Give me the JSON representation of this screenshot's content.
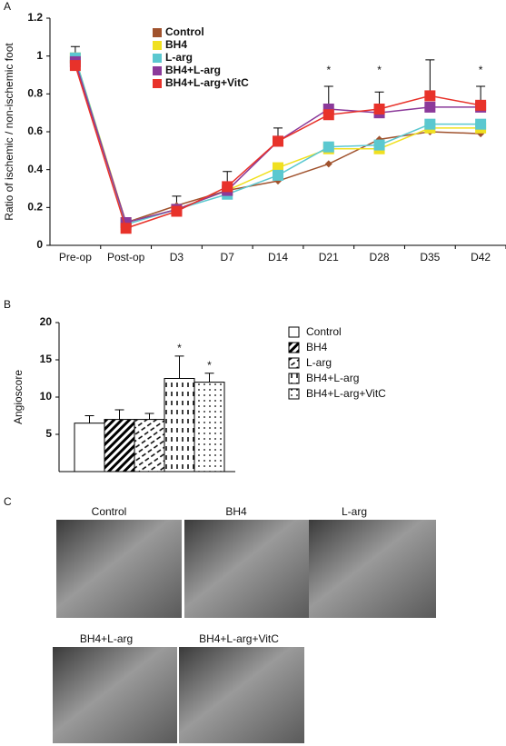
{
  "panel_labels": [
    "A",
    "B",
    "C"
  ],
  "chart_data": [
    {
      "type": "line",
      "ylabel": "Ratio of ischemic / non-ischemic foot",
      "categories": [
        "Pre-op",
        "Post-op",
        "D3",
        "D7",
        "D14",
        "D21",
        "D28",
        "D35",
        "D42"
      ],
      "series": [
        {
          "name": "Control",
          "color": "#a0522d",
          "marker": "diamond",
          "values": [
            0.97,
            0.12,
            0.21,
            0.29,
            0.34,
            0.43,
            0.56,
            0.6,
            0.59
          ]
        },
        {
          "name": "BH4",
          "color": "#f0e020",
          "marker": "square",
          "values": [
            0.99,
            0.12,
            0.19,
            0.29,
            0.41,
            0.51,
            0.51,
            0.62,
            0.62
          ]
        },
        {
          "name": "L-arg",
          "color": "#5bc8d0",
          "marker": "square",
          "values": [
            0.99,
            0.11,
            0.19,
            0.27,
            0.37,
            0.52,
            0.53,
            0.64,
            0.64
          ]
        },
        {
          "name": "BH4+L-arg",
          "color": "#8b3a9a",
          "marker": "square",
          "values": [
            0.97,
            0.12,
            0.19,
            0.29,
            0.55,
            0.72,
            0.7,
            0.73,
            0.73
          ]
        },
        {
          "name": "BH4+L-arg+VitC",
          "color": "#e8322a",
          "marker": "square",
          "values": [
            0.95,
            0.09,
            0.18,
            0.31,
            0.55,
            0.69,
            0.72,
            0.79,
            0.74
          ],
          "errors": [
            0.1,
            0.04,
            0.08,
            0.08,
            0.07,
            0.15,
            0.09,
            0.19,
            0.1
          ]
        }
      ],
      "significance": [
        null,
        null,
        null,
        null,
        null,
        "*",
        "*",
        null,
        "*"
      ],
      "ylim": [
        0,
        1.2
      ],
      "yticks": [
        0,
        0.2,
        0.4,
        0.6,
        0.8,
        1,
        1.2
      ]
    },
    {
      "type": "bar",
      "ylabel": "Angioscore",
      "categories": [
        "Control",
        "BH4",
        "L-arg",
        "BH4+L-arg",
        "BH4+L-arg+VitC"
      ],
      "values": [
        6.5,
        7,
        7,
        12.5,
        12
      ],
      "errors": [
        1,
        1.3,
        0.8,
        3,
        1.2
      ],
      "patterns": [
        "none",
        "diagonal",
        "hatch",
        "dashes",
        "dots"
      ],
      "significance": [
        null,
        null,
        null,
        "*",
        "*"
      ],
      "ylim": [
        0,
        20
      ],
      "yticks": [
        5,
        10,
        15,
        20
      ]
    }
  ],
  "images": {
    "captions": [
      "Control",
      "BH4",
      "L-arg",
      "BH4+L-arg",
      "BH4+L-arg+VitC"
    ]
  }
}
